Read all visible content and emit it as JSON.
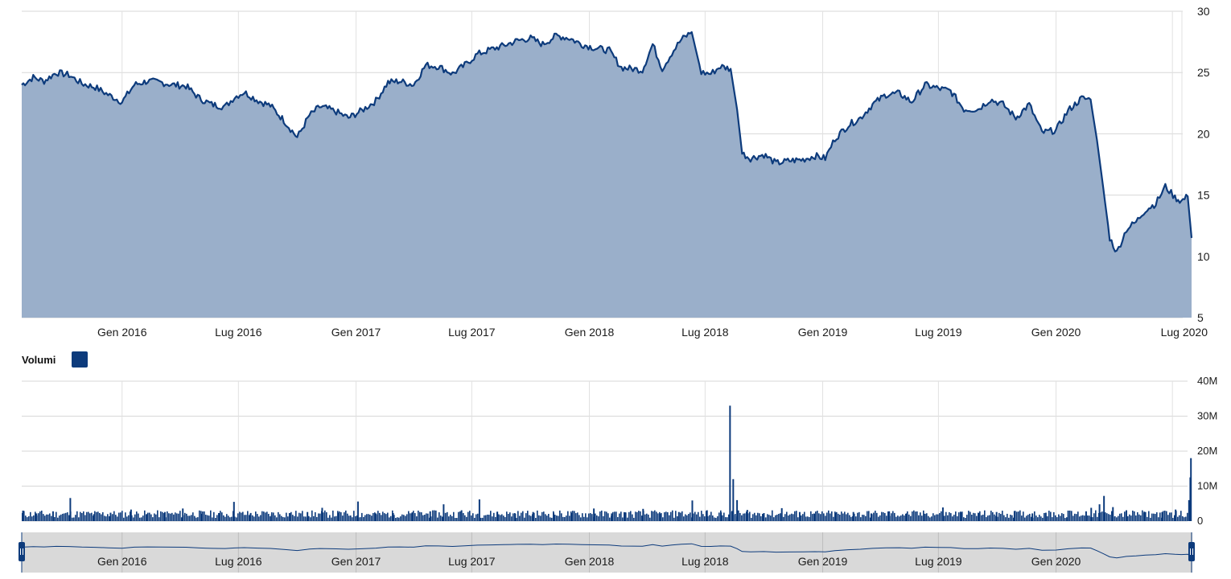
{
  "chart_data": [
    {
      "type": "area",
      "x_axis": {
        "tick_labels": [
          "Gen 2016",
          "Lug 2016",
          "Gen 2017",
          "Lug 2017",
          "Gen 2018",
          "Lug 2018",
          "Gen 2019",
          "Lug 2019",
          "Gen 2020",
          "Lug 2020"
        ]
      },
      "y_axis": {
        "ticks": [
          5,
          10,
          15,
          20,
          25,
          30
        ],
        "ylim": [
          5,
          30
        ]
      },
      "series": [
        {
          "x": [
            "2015-07-28",
            "2015-08-15",
            "2015-09-01",
            "2015-09-20",
            "2015-10-10",
            "2015-10-30",
            "2015-11-20",
            "2015-12-10",
            "2016-01-01",
            "2016-01-20",
            "2016-02-10",
            "2016-03-01",
            "2016-03-20",
            "2016-04-10",
            "2016-05-01",
            "2016-05-20",
            "2016-06-10",
            "2016-06-25",
            "2016-07-10",
            "2016-08-01",
            "2016-08-20",
            "2016-09-10",
            "2016-10-01",
            "2016-10-20",
            "2016-11-05",
            "2016-11-15",
            "2016-12-01",
            "2016-12-20",
            "2017-01-10",
            "2017-02-01",
            "2017-02-20",
            "2017-03-10",
            "2017-04-01",
            "2017-04-20",
            "2017-05-10",
            "2017-06-01",
            "2017-06-20",
            "2017-07-10",
            "2017-08-01",
            "2017-08-20",
            "2017-09-10",
            "2017-10-01",
            "2017-10-20",
            "2017-11-10",
            "2017-12-01",
            "2017-12-20",
            "2018-01-10",
            "2018-02-01",
            "2018-02-20",
            "2018-03-10",
            "2018-03-25",
            "2018-04-10",
            "2018-04-25",
            "2018-05-10",
            "2018-05-25",
            "2018-06-10",
            "2018-06-25",
            "2018-07-10",
            "2018-07-25",
            "2018-08-10",
            "2018-08-20",
            "2018-08-28",
            "2018-09-10",
            "2018-10-01",
            "2018-10-20",
            "2018-11-10",
            "2018-12-01",
            "2018-12-20",
            "2019-01-05",
            "2019-01-20",
            "2019-02-10",
            "2019-03-01",
            "2019-03-20",
            "2019-04-10",
            "2019-05-01",
            "2019-05-20",
            "2019-06-10",
            "2019-07-01",
            "2019-07-20",
            "2019-08-10",
            "2019-09-01",
            "2019-09-20",
            "2019-10-10",
            "2019-10-30",
            "2019-11-20",
            "2019-12-10",
            "2020-01-01",
            "2020-01-20",
            "2020-02-10",
            "2020-02-24",
            "2020-03-05",
            "2020-03-15",
            "2020-03-25",
            "2020-04-05",
            "2020-04-20",
            "2020-05-05",
            "2020-05-20",
            "2020-06-05",
            "2020-06-20",
            "2020-07-05",
            "2020-07-15",
            "2020-07-25",
            "2020-07-31"
          ],
          "values": [
            24.0,
            24.6,
            24.3,
            25.0,
            24.8,
            24.1,
            23.8,
            23.2,
            22.6,
            24.0,
            24.3,
            24.2,
            24.0,
            23.9,
            22.9,
            22.4,
            22.2,
            23.0,
            23.4,
            22.7,
            22.3,
            21.1,
            19.7,
            21.5,
            22.2,
            22.1,
            21.8,
            21.3,
            21.9,
            22.7,
            24.2,
            24.3,
            24.0,
            25.6,
            25.5,
            24.9,
            25.6,
            26.5,
            26.9,
            27.2,
            27.6,
            27.8,
            27.3,
            28.0,
            27.8,
            27.3,
            27.0,
            26.8,
            25.4,
            25.3,
            25.2,
            27.3,
            25.3,
            26.6,
            27.7,
            28.3,
            25.0,
            24.9,
            25.5,
            25.3,
            22.0,
            18.4,
            18.0,
            18.3,
            17.6,
            17.8,
            17.9,
            18.2,
            18.0,
            19.6,
            20.7,
            21.3,
            22.4,
            23.2,
            23.3,
            22.6,
            24.0,
            23.7,
            23.5,
            22.0,
            22.0,
            22.8,
            22.4,
            21.3,
            22.4,
            20.1,
            20.3,
            21.9,
            22.9,
            22.8,
            19.5,
            15.5,
            11.5,
            10.3,
            12.2,
            12.8,
            13.8,
            14.3,
            15.7,
            14.8,
            14.5,
            14.9,
            11.5
          ]
        }
      ]
    },
    {
      "type": "bar",
      "legend": {
        "label": "Volumi",
        "color": "#0d3b7c"
      },
      "x_axis": {
        "tick_labels": [
          "Gen 2016",
          "Lug 2016",
          "Gen 2017",
          "Lug 2017",
          "Gen 2018",
          "Lug 2018",
          "Gen 2019",
          "Lug 2019",
          "Gen 2020",
          "Lug 2020"
        ]
      },
      "y_axis": {
        "tick_labels": [
          "0",
          "10M",
          "20M",
          "30M",
          "40M"
        ],
        "ylim": [
          0,
          40000000
        ]
      },
      "series": [
        {
          "name": "Volumi",
          "x": [
            "2015-07-30",
            "2015-08-20",
            "2015-09-15",
            "2015-10-12",
            "2015-11-18",
            "2015-12-14",
            "2016-01-15",
            "2016-02-10",
            "2016-03-08",
            "2016-04-05",
            "2016-05-04",
            "2016-06-02",
            "2016-06-24",
            "2016-07-20",
            "2016-08-22",
            "2016-09-19",
            "2016-10-17",
            "2016-11-09",
            "2016-12-05",
            "2017-01-04",
            "2017-02-01",
            "2017-02-28",
            "2017-03-30",
            "2017-04-27",
            "2017-05-18",
            "2017-06-15",
            "2017-07-13",
            "2017-08-10",
            "2017-09-07",
            "2017-10-05",
            "2017-11-06",
            "2017-12-04",
            "2018-01-08",
            "2018-02-05",
            "2018-02-26",
            "2018-03-26",
            "2018-04-23",
            "2018-05-21",
            "2018-06-11",
            "2018-07-04",
            "2018-07-26",
            "2018-08-09",
            "2018-08-14",
            "2018-08-20",
            "2018-09-05",
            "2018-10-01",
            "2018-10-29",
            "2018-11-26",
            "2018-12-20",
            "2019-01-21",
            "2019-02-18",
            "2019-03-18",
            "2019-04-15",
            "2019-05-13",
            "2019-06-10",
            "2019-07-08",
            "2019-08-05",
            "2019-09-02",
            "2019-09-30",
            "2019-10-28",
            "2019-11-25",
            "2019-12-16",
            "2020-01-20",
            "2020-02-17",
            "2020-02-25",
            "2020-03-09",
            "2020-03-16",
            "2020-03-30",
            "2020-04-20",
            "2020-05-18",
            "2020-06-15",
            "2020-07-06",
            "2020-07-27",
            "2020-07-29",
            "2020-07-30"
          ],
          "values": [
            3000000,
            2200000,
            2800000,
            6600000,
            2000000,
            2400000,
            3300000,
            2100000,
            2600000,
            3600000,
            2100000,
            2300000,
            5500000,
            2200000,
            1900000,
            2300000,
            2600000,
            3800000,
            2400000,
            5600000,
            2200000,
            2300000,
            2500000,
            2800000,
            4800000,
            3100000,
            6200000,
            2700000,
            2100000,
            2600000,
            2400000,
            2300000,
            3600000,
            2200000,
            2500000,
            3500000,
            2100000,
            2600000,
            5900000,
            3100000,
            2500000,
            33000000,
            12000000,
            6000000,
            3200000,
            2300000,
            3700000,
            2600000,
            2100000,
            2400000,
            2600000,
            2200000,
            2800000,
            2300000,
            2100000,
            3900000,
            2500000,
            2300000,
            2600000,
            2900000,
            2200000,
            2400000,
            3000000,
            2800000,
            3800000,
            4800000,
            7200000,
            4000000,
            3100000,
            2700000,
            2600000,
            3300000,
            6000000,
            12500000,
            18000000
          ]
        }
      ]
    },
    {
      "type": "line",
      "role": "navigator",
      "x_axis": {
        "tick_labels": [
          "Gen 2016",
          "Lug 2016",
          "Gen 2017",
          "Lug 2017",
          "Gen 2018",
          "Lug 2018",
          "Gen 2019",
          "Lug 2019",
          "Gen 2020"
        ]
      }
    }
  ]
}
